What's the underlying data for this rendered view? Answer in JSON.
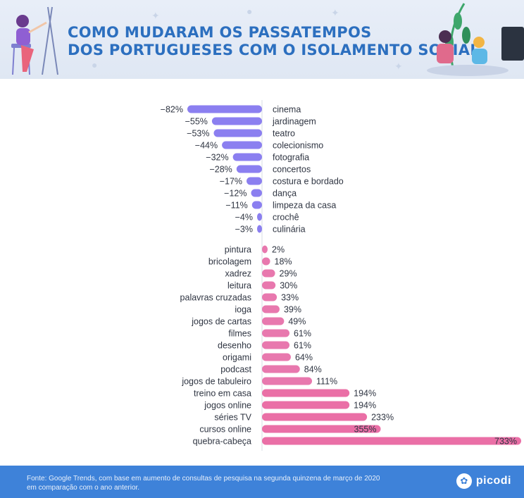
{
  "header": {
    "title_line1": "COMO MUDARAM OS PASSATEMPOS",
    "title_line2": "DOS PORTUGUESES COM O ISOLAMENTO SOCIAL"
  },
  "footer": {
    "note_line1": "Fonte: Google Trends, com base em aumento de consultas de pesquisa na segunda quinzena de março de 2020",
    "note_line2": "em comparação com o ano anterior.",
    "brand": "picodi",
    "brand_icon": "picodi-logo-icon"
  },
  "colors": {
    "negative": "#8b7ff0",
    "positive": "#e878ae",
    "positive_strong": "#ea6fa6",
    "title": "#2c6fbf",
    "footer_bg": "#3e82d9"
  },
  "chart_data": {
    "type": "bar",
    "orientation": "horizontal",
    "title": "COMO MUDARAM OS PASSATEMPOS DOS PORTUGUESES COM O ISOLAMENTO SOCIAL",
    "unit": "%",
    "negative": {
      "categories": [
        "cinema",
        "jardinagem",
        "teatro",
        "colecionismo",
        "fotografia",
        "concertos",
        "costura e bordado",
        "dança",
        "limpeza da casa",
        "crochê",
        "culinária"
      ],
      "values": [
        -82,
        -55,
        -53,
        -44,
        -32,
        -28,
        -17,
        -12,
        -11,
        -4,
        -3
      ],
      "labels": [
        "−82%",
        "−55%",
        "−53%",
        "−44%",
        "−32%",
        "−28%",
        "−17%",
        "−12%",
        "−11%",
        "−4%",
        "−3%"
      ]
    },
    "positive": {
      "categories": [
        "pintura",
        "bricolagem",
        "xadrez",
        "leitura",
        "palavras cruzadas",
        "ioga",
        "jogos de cartas",
        "filmes",
        "desenho",
        "origami",
        "podcast",
        "jogos de tabuleiro",
        "treino em casa",
        "jogos online",
        "séries TV",
        "cursos online",
        "quebra-cabeça"
      ],
      "values": [
        2,
        18,
        29,
        30,
        33,
        39,
        49,
        61,
        61,
        64,
        84,
        111,
        194,
        194,
        233,
        355,
        733
      ],
      "labels": [
        "2%",
        "18%",
        "29%",
        "30%",
        "33%",
        "39%",
        "49%",
        "61%",
        "61%",
        "64%",
        "84%",
        "111%",
        "194%",
        "194%",
        "233%",
        "355%",
        "733%"
      ]
    }
  }
}
